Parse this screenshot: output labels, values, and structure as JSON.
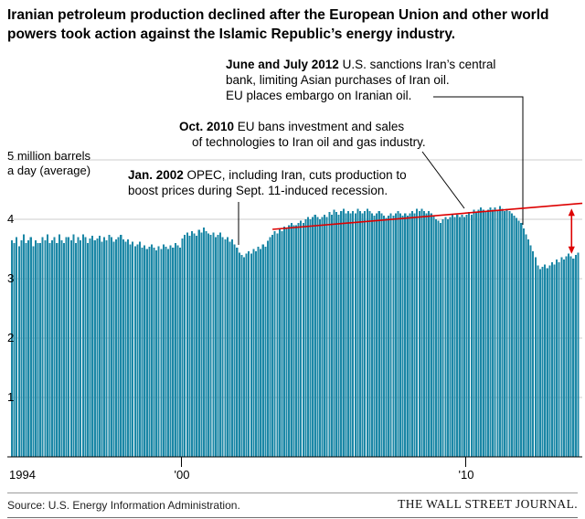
{
  "header": {
    "title_line1": "Iranian petroleum production declined after the European Union and other world",
    "title_line2": "powers took action against the Islamic Republic’s energy industry."
  },
  "axis": {
    "y_unit_label_line1": "5 million barrels",
    "y_unit_label_line2": "a day (average)",
    "y_ticks": [
      "4",
      "3",
      "2",
      "1"
    ],
    "x_ticks": [
      "1994",
      "'00",
      "'10"
    ]
  },
  "annotations": {
    "a2012": {
      "bold": "June and July 2012",
      "line1_rest": " U.S. sanctions Iran’s central",
      "line2": "bank, limiting Asian purchases of Iran oil.",
      "line3": "EU places embargo on Iranian oil."
    },
    "a2010": {
      "bold": "Oct. 2010",
      "line1_rest": " EU bans investment and sales",
      "line2": "of technologies to Iran oil and gas industry."
    },
    "a2002": {
      "bold": "Jan. 2002",
      "line1_rest": " OPEC, including Iran, cuts production to",
      "line2": "boost prices during Sept. 11-induced recession."
    }
  },
  "footer": {
    "source": "Source: U.S. Energy Information Administration.",
    "brand": "THE WALL STREET JOURNAL."
  },
  "chart_data": {
    "type": "bar",
    "title": "Iranian petroleum production",
    "ylabel": "million barrels a day (average)",
    "ylim": [
      0,
      5
    ],
    "y_gridlines": [
      1,
      2,
      3,
      4,
      5
    ],
    "x_start_year": 1994,
    "frequency": "monthly",
    "x_tick_mark_years": [
      2000,
      2010
    ],
    "bar_color": "#1b87a6",
    "grid_color": "#cccccc",
    "values": [
      3.65,
      3.6,
      3.7,
      3.55,
      3.65,
      3.75,
      3.6,
      3.65,
      3.7,
      3.55,
      3.65,
      3.6,
      3.6,
      3.7,
      3.65,
      3.75,
      3.6,
      3.65,
      3.7,
      3.6,
      3.75,
      3.65,
      3.6,
      3.7,
      3.7,
      3.65,
      3.75,
      3.6,
      3.7,
      3.65,
      3.75,
      3.7,
      3.6,
      3.68,
      3.72,
      3.65,
      3.68,
      3.72,
      3.62,
      3.7,
      3.65,
      3.74,
      3.7,
      3.62,
      3.66,
      3.7,
      3.74,
      3.66,
      3.62,
      3.66,
      3.58,
      3.62,
      3.55,
      3.58,
      3.62,
      3.52,
      3.56,
      3.5,
      3.54,
      3.58,
      3.52,
      3.48,
      3.55,
      3.5,
      3.58,
      3.54,
      3.5,
      3.56,
      3.52,
      3.6,
      3.56,
      3.52,
      3.68,
      3.74,
      3.78,
      3.72,
      3.8,
      3.76,
      3.72,
      3.82,
      3.78,
      3.86,
      3.8,
      3.76,
      3.74,
      3.78,
      3.7,
      3.74,
      3.78,
      3.7,
      3.66,
      3.7,
      3.62,
      3.66,
      3.58,
      3.52,
      3.44,
      3.4,
      3.36,
      3.42,
      3.46,
      3.42,
      3.5,
      3.46,
      3.54,
      3.5,
      3.58,
      3.54,
      3.64,
      3.7,
      3.74,
      3.8,
      3.76,
      3.84,
      3.8,
      3.88,
      3.84,
      3.9,
      3.94,
      3.9,
      3.9,
      3.94,
      3.98,
      3.94,
      4.0,
      4.04,
      4.0,
      4.04,
      4.08,
      4.04,
      4.0,
      4.04,
      4.08,
      4.04,
      4.12,
      4.08,
      4.16,
      4.12,
      4.08,
      4.14,
      4.18,
      4.1,
      4.14,
      4.1,
      4.14,
      4.1,
      4.18,
      4.14,
      4.1,
      4.14,
      4.18,
      4.14,
      4.1,
      4.06,
      4.1,
      4.14,
      4.1,
      4.06,
      4.02,
      4.06,
      4.1,
      4.06,
      4.1,
      4.14,
      4.1,
      4.06,
      4.1,
      4.06,
      4.1,
      4.14,
      4.1,
      4.18,
      4.14,
      4.18,
      4.14,
      4.1,
      4.14,
      4.1,
      4.06,
      4.0,
      3.98,
      3.94,
      4.0,
      4.04,
      4.0,
      4.04,
      4.08,
      4.04,
      4.08,
      4.04,
      4.08,
      4.04,
      4.08,
      4.12,
      4.08,
      4.16,
      4.12,
      4.16,
      4.2,
      4.16,
      4.12,
      4.16,
      4.2,
      4.16,
      4.2,
      4.16,
      4.22,
      4.18,
      4.14,
      4.18,
      4.14,
      4.1,
      4.06,
      4.02,
      3.98,
      3.94,
      3.85,
      3.75,
      3.66,
      3.56,
      3.46,
      3.36,
      3.22,
      3.16,
      3.2,
      3.24,
      3.18,
      3.22,
      3.28,
      3.24,
      3.32,
      3.28,
      3.36,
      3.32,
      3.38,
      3.42,
      3.38,
      3.34,
      3.4,
      3.44
    ],
    "trend_line": {
      "color": "#dd0000",
      "start_year": 2003.2,
      "start_value": 3.83,
      "end_year": 2014.1,
      "end_value": 4.27
    },
    "gap_arrow": {
      "color": "#dd0000",
      "year": 2013.72,
      "top_value": 4.18,
      "bottom_value": 3.42
    }
  }
}
